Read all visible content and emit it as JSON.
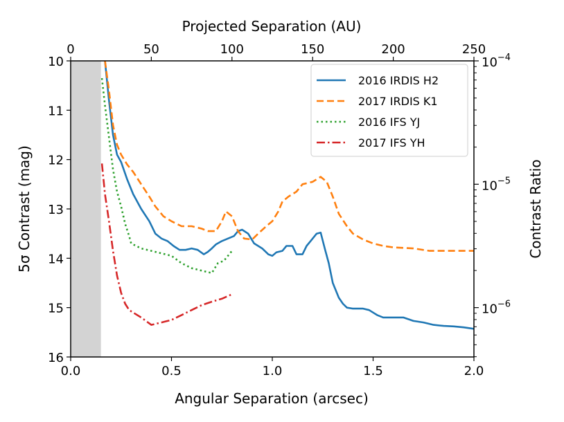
{
  "chart_data": {
    "type": "line",
    "xlabel": "Angular Separation (arcsec)",
    "ylabel": "5σ Contrast (mag)",
    "top_xlabel": "Projected Separation (AU)",
    "right_ylabel": "Contrast Ratio",
    "xlim": [
      0,
      2
    ],
    "ylim": [
      16,
      10
    ],
    "top_xlim": [
      0,
      250
    ],
    "x_ticks": [
      "0.0",
      "0.5",
      "1.0",
      "1.5",
      "2.0"
    ],
    "y_ticks": [
      "10",
      "11",
      "12",
      "13",
      "14",
      "15",
      "16"
    ],
    "top_x_ticks": [
      "0",
      "50",
      "100",
      "150",
      "200",
      "250"
    ],
    "right_scale": "log",
    "right_ticks": [
      {
        "base": "10",
        "exp": "−4",
        "mag": 10
      },
      {
        "base": "10",
        "exp": "−5",
        "mag": 12.5
      },
      {
        "base": "10",
        "exp": "−6",
        "mag": 15
      }
    ],
    "masked_region": [
      0,
      0.15
    ],
    "grid": false,
    "legend_position": "upper right",
    "series": [
      {
        "name": "2016 IRDIS H2",
        "color": "#1f77b4",
        "dash": "solid",
        "points": [
          [
            0.17,
            10.0
          ],
          [
            0.19,
            10.8
          ],
          [
            0.21,
            11.5
          ],
          [
            0.23,
            11.9
          ],
          [
            0.25,
            12.05
          ],
          [
            0.28,
            12.4
          ],
          [
            0.31,
            12.7
          ],
          [
            0.35,
            13.0
          ],
          [
            0.39,
            13.25
          ],
          [
            0.42,
            13.5
          ],
          [
            0.45,
            13.6
          ],
          [
            0.48,
            13.65
          ],
          [
            0.51,
            13.75
          ],
          [
            0.54,
            13.83
          ],
          [
            0.57,
            13.83
          ],
          [
            0.6,
            13.8
          ],
          [
            0.63,
            13.83
          ],
          [
            0.66,
            13.92
          ],
          [
            0.68,
            13.87
          ],
          [
            0.7,
            13.8
          ],
          [
            0.72,
            13.72
          ],
          [
            0.75,
            13.65
          ],
          [
            0.78,
            13.6
          ],
          [
            0.81,
            13.55
          ],
          [
            0.83,
            13.45
          ],
          [
            0.85,
            13.42
          ],
          [
            0.88,
            13.5
          ],
          [
            0.91,
            13.7
          ],
          [
            0.95,
            13.8
          ],
          [
            0.98,
            13.92
          ],
          [
            1.0,
            13.95
          ],
          [
            1.02,
            13.88
          ],
          [
            1.05,
            13.85
          ],
          [
            1.07,
            13.75
          ],
          [
            1.1,
            13.75
          ],
          [
            1.12,
            13.92
          ],
          [
            1.15,
            13.92
          ],
          [
            1.17,
            13.75
          ],
          [
            1.19,
            13.65
          ],
          [
            1.22,
            13.5
          ],
          [
            1.24,
            13.48
          ],
          [
            1.26,
            13.8
          ],
          [
            1.28,
            14.1
          ],
          [
            1.3,
            14.5
          ],
          [
            1.33,
            14.8
          ],
          [
            1.35,
            14.92
          ],
          [
            1.37,
            15.0
          ],
          [
            1.4,
            15.02
          ],
          [
            1.45,
            15.02
          ],
          [
            1.48,
            15.05
          ],
          [
            1.5,
            15.1
          ],
          [
            1.52,
            15.15
          ],
          [
            1.55,
            15.2
          ],
          [
            1.6,
            15.2
          ],
          [
            1.65,
            15.2
          ],
          [
            1.7,
            15.27
          ],
          [
            1.75,
            15.3
          ],
          [
            1.8,
            15.35
          ],
          [
            1.85,
            15.37
          ],
          [
            1.9,
            15.38
          ],
          [
            1.95,
            15.4
          ],
          [
            2.0,
            15.43
          ]
        ]
      },
      {
        "name": "2017 IRDIS K1",
        "color": "#ff7f0e",
        "dash": "dashed",
        "points": [
          [
            0.17,
            10.0
          ],
          [
            0.19,
            10.6
          ],
          [
            0.21,
            11.3
          ],
          [
            0.23,
            11.7
          ],
          [
            0.25,
            11.9
          ],
          [
            0.28,
            12.1
          ],
          [
            0.31,
            12.25
          ],
          [
            0.35,
            12.5
          ],
          [
            0.39,
            12.75
          ],
          [
            0.42,
            12.95
          ],
          [
            0.46,
            13.15
          ],
          [
            0.5,
            13.25
          ],
          [
            0.55,
            13.35
          ],
          [
            0.6,
            13.35
          ],
          [
            0.65,
            13.4
          ],
          [
            0.68,
            13.45
          ],
          [
            0.72,
            13.45
          ],
          [
            0.75,
            13.25
          ],
          [
            0.77,
            13.05
          ],
          [
            0.8,
            13.15
          ],
          [
            0.83,
            13.45
          ],
          [
            0.86,
            13.6
          ],
          [
            0.9,
            13.62
          ],
          [
            0.93,
            13.5
          ],
          [
            0.97,
            13.35
          ],
          [
            1.0,
            13.25
          ],
          [
            1.03,
            13.05
          ],
          [
            1.05,
            12.85
          ],
          [
            1.08,
            12.75
          ],
          [
            1.12,
            12.65
          ],
          [
            1.15,
            12.5
          ],
          [
            1.2,
            12.45
          ],
          [
            1.22,
            12.4
          ],
          [
            1.24,
            12.35
          ],
          [
            1.27,
            12.45
          ],
          [
            1.3,
            12.75
          ],
          [
            1.33,
            13.1
          ],
          [
            1.37,
            13.35
          ],
          [
            1.4,
            13.5
          ],
          [
            1.45,
            13.62
          ],
          [
            1.5,
            13.7
          ],
          [
            1.55,
            13.75
          ],
          [
            1.6,
            13.78
          ],
          [
            1.7,
            13.8
          ],
          [
            1.78,
            13.85
          ],
          [
            1.85,
            13.85
          ],
          [
            2.0,
            13.85
          ]
        ]
      },
      {
        "name": "2016 IFS YJ",
        "color": "#2ca02c",
        "dash": "dotted",
        "points": [
          [
            0.155,
            10.35
          ],
          [
            0.17,
            10.9
          ],
          [
            0.19,
            11.55
          ],
          [
            0.21,
            12.2
          ],
          [
            0.23,
            12.65
          ],
          [
            0.25,
            12.95
          ],
          [
            0.27,
            13.3
          ],
          [
            0.29,
            13.55
          ],
          [
            0.3,
            13.7
          ],
          [
            0.35,
            13.8
          ],
          [
            0.4,
            13.85
          ],
          [
            0.45,
            13.9
          ],
          [
            0.5,
            13.95
          ],
          [
            0.55,
            14.1
          ],
          [
            0.6,
            14.2
          ],
          [
            0.65,
            14.25
          ],
          [
            0.7,
            14.3
          ],
          [
            0.73,
            14.1
          ],
          [
            0.76,
            14.05
          ],
          [
            0.8,
            13.85
          ]
        ]
      },
      {
        "name": "2017 IFS YH",
        "color": "#d62728",
        "dash": "dashdot",
        "points": [
          [
            0.155,
            12.08
          ],
          [
            0.17,
            12.7
          ],
          [
            0.19,
            13.25
          ],
          [
            0.21,
            13.85
          ],
          [
            0.23,
            14.35
          ],
          [
            0.25,
            14.7
          ],
          [
            0.27,
            14.92
          ],
          [
            0.29,
            15.05
          ],
          [
            0.31,
            15.1
          ],
          [
            0.35,
            15.2
          ],
          [
            0.4,
            15.35
          ],
          [
            0.45,
            15.3
          ],
          [
            0.5,
            15.25
          ],
          [
            0.55,
            15.15
          ],
          [
            0.6,
            15.05
          ],
          [
            0.65,
            14.95
          ],
          [
            0.7,
            14.88
          ],
          [
            0.75,
            14.82
          ],
          [
            0.8,
            14.73
          ]
        ]
      }
    ]
  }
}
